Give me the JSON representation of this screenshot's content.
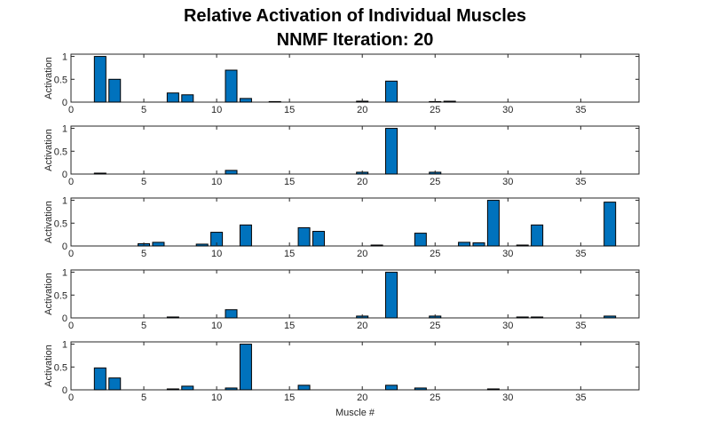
{
  "chart_data": {
    "type": "bar",
    "title_line1": "Relative Activation of Individual Muscles",
    "title_line2": "NNMF Iteration: 20",
    "xlabel": "Muscle #",
    "ylabel": "Activation",
    "xlim": [
      0,
      39
    ],
    "ylim": [
      0,
      1.05
    ],
    "xticks": [
      0,
      5,
      10,
      15,
      20,
      25,
      30,
      35
    ],
    "yticks": [
      0,
      0.5,
      1
    ],
    "yticklabels": [
      "0",
      "0.5",
      "1"
    ],
    "bar_color": "#0072BD",
    "grid": false,
    "series": [
      {
        "x": [
          2,
          3,
          7,
          8,
          11,
          12,
          14,
          20,
          22,
          25,
          26
        ],
        "values": [
          1.0,
          0.5,
          0.2,
          0.16,
          0.7,
          0.08,
          0.01,
          0.02,
          0.46,
          0.01,
          0.02
        ]
      },
      {
        "x": [
          2,
          11,
          20,
          22,
          25
        ],
        "values": [
          0.02,
          0.08,
          0.04,
          1.0,
          0.04
        ]
      },
      {
        "x": [
          5,
          6,
          9,
          10,
          12,
          16,
          17,
          21,
          24,
          27,
          28,
          29,
          31,
          32,
          37
        ],
        "values": [
          0.05,
          0.08,
          0.04,
          0.3,
          0.46,
          0.4,
          0.32,
          0.02,
          0.28,
          0.08,
          0.07,
          1.0,
          0.02,
          0.46,
          0.96
        ]
      },
      {
        "x": [
          7,
          11,
          20,
          22,
          25,
          31,
          32,
          37
        ],
        "values": [
          0.02,
          0.18,
          0.04,
          1.0,
          0.04,
          0.02,
          0.02,
          0.04
        ]
      },
      {
        "x": [
          2,
          3,
          7,
          8,
          11,
          12,
          16,
          22,
          24,
          29
        ],
        "values": [
          0.48,
          0.26,
          0.02,
          0.08,
          0.04,
          1.0,
          0.1,
          0.1,
          0.04,
          0.02
        ]
      }
    ]
  }
}
